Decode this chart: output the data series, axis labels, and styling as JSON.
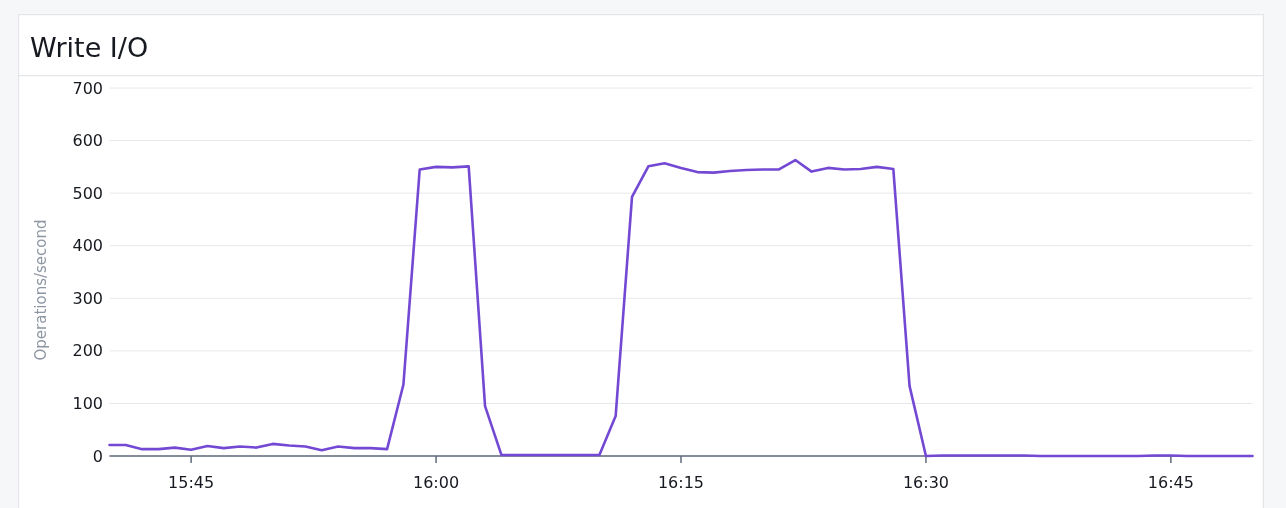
{
  "chart_data": {
    "type": "line",
    "title": "Write I/O",
    "ylabel": "Operations/second",
    "x": [
      15.6667,
      15.6833,
      15.7,
      15.7167,
      15.7333,
      15.75,
      15.7667,
      15.7833,
      15.8,
      15.8167,
      15.8333,
      15.85,
      15.8667,
      15.8833,
      15.9,
      15.9167,
      15.9333,
      15.95,
      15.9667,
      15.9833,
      16.0,
      16.0167,
      16.0333,
      16.05,
      16.0667,
      16.0833,
      16.1,
      16.1167,
      16.1333,
      16.15,
      16.1667,
      16.1833,
      16.2,
      16.2167,
      16.2333,
      16.25,
      16.2667,
      16.2833,
      16.3,
      16.3167,
      16.3333,
      16.35,
      16.3667,
      16.3833,
      16.4,
      16.4167,
      16.4333,
      16.45,
      16.4667,
      16.4833,
      16.5,
      16.5167,
      16.5333,
      16.55,
      16.5667,
      16.5833,
      16.6,
      16.6167,
      16.6333,
      16.65,
      16.6667,
      16.6833,
      16.7,
      16.7167,
      16.7333,
      16.75,
      16.7667,
      16.7833,
      16.8,
      16.8167,
      16.8333
    ],
    "series": [
      {
        "color": "#7349d4",
        "values": [
          21,
          21,
          13,
          13,
          16,
          12,
          19,
          15,
          18,
          16,
          23,
          20,
          18,
          11,
          18,
          15,
          15,
          13,
          136,
          545,
          550,
          549,
          551,
          95,
          2,
          2,
          2,
          2,
          2,
          2,
          2,
          76,
          493,
          551,
          557,
          548,
          540,
          539,
          542,
          544,
          545,
          545,
          563,
          541,
          548,
          545,
          546,
          550,
          546,
          133,
          0,
          1,
          1,
          1,
          1,
          1,
          1,
          0,
          0,
          0,
          0,
          0,
          0,
          0,
          1,
          1,
          0,
          0,
          0,
          0,
          0
        ]
      }
    ],
    "xlim": [
      15.6667,
      16.8333
    ],
    "xticks": [
      {
        "value": 15.75,
        "label": "15:45"
      },
      {
        "value": 16.0,
        "label": "16:00"
      },
      {
        "value": 16.25,
        "label": "16:15"
      },
      {
        "value": 16.5,
        "label": "16:30"
      },
      {
        "value": 16.75,
        "label": "16:45"
      }
    ],
    "ylim": [
      0,
      700
    ],
    "yticks": [
      0,
      100,
      200,
      300,
      400,
      500,
      600,
      700
    ],
    "grid": "y"
  }
}
